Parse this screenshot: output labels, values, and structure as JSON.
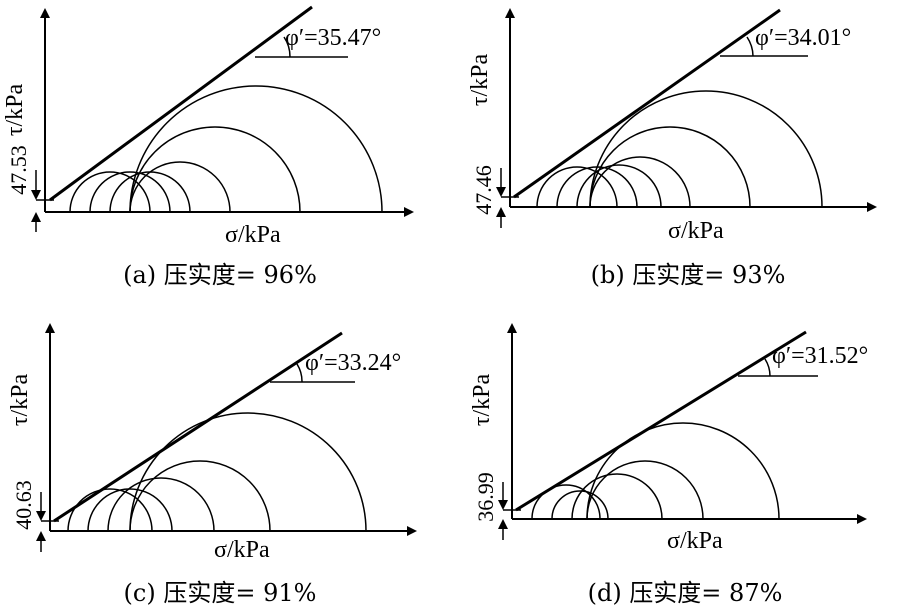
{
  "panels": [
    {
      "caption": "(a) 压实度= 96%",
      "tau_label": "τ/kPa",
      "sigma_label": "σ/kPa",
      "cohesion": "47.53",
      "friction_angle_label": "φ′=35.47°",
      "friction_angle_deg": 35.47
    },
    {
      "caption": "(b) 压实度= 93%",
      "tau_label": "τ/kPa",
      "sigma_label": "σ/kPa",
      "cohesion": "47.46",
      "friction_angle_label": "φ′=34.01°",
      "friction_angle_deg": 34.01
    },
    {
      "caption": "(c) 压实度= 91%",
      "tau_label": "τ/kPa",
      "sigma_label": "σ/kPa",
      "cohesion": "40.63",
      "friction_angle_label": "φ′=33.24°",
      "friction_angle_deg": 33.24
    },
    {
      "caption": "(d) 压实度= 87%",
      "tau_label": "τ/kPa",
      "sigma_label": "σ/kPa",
      "cohesion": "36.99",
      "friction_angle_label": "φ′=31.52°",
      "friction_angle_deg": 31.52
    }
  ]
}
